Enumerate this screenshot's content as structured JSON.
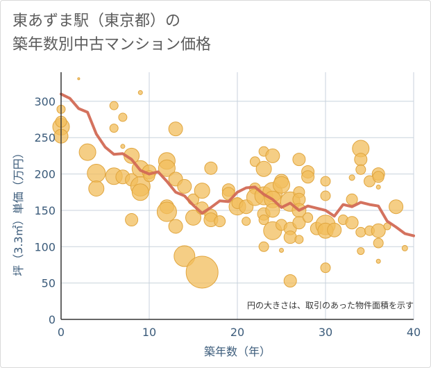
{
  "title_lines": [
    "東あずま駅（東京都）の",
    "築年数別中古マンション価格"
  ],
  "note": "円の大きさは、取引のあった物件面積を示す",
  "colors": {
    "bubble_fill": "#f1bd5c",
    "bubble_stroke": "#e0a53e",
    "line": "#d26a55",
    "grid": "#c8d2dc",
    "axis": "#333333",
    "text": "#3b5b7a"
  },
  "chart_data": {
    "type": "scatter",
    "xlabel": "築年数（年）",
    "ylabel": "坪（3.3㎡）単価（万円）",
    "xlim": [
      0,
      40
    ],
    "ylim": [
      0,
      340
    ],
    "xticks": [
      0,
      10,
      20,
      30,
      40
    ],
    "yticks": [
      0,
      50,
      100,
      150,
      200,
      250,
      300
    ],
    "grid": true,
    "bubbles": [
      {
        "x": 0,
        "y": 265,
        "r": 12
      },
      {
        "x": 0,
        "y": 252,
        "r": 10
      },
      {
        "x": 0,
        "y": 272,
        "r": 8
      },
      {
        "x": 0,
        "y": 289,
        "r": 6
      },
      {
        "x": 2,
        "y": 331,
        "r": 1.5
      },
      {
        "x": 3,
        "y": 230,
        "r": 12
      },
      {
        "x": 4,
        "y": 201,
        "r": 13
      },
      {
        "x": 4,
        "y": 180,
        "r": 11
      },
      {
        "x": 6,
        "y": 294,
        "r": 6
      },
      {
        "x": 6,
        "y": 263,
        "r": 6
      },
      {
        "x": 6,
        "y": 197,
        "r": 12
      },
      {
        "x": 7,
        "y": 278,
        "r": 6
      },
      {
        "x": 7,
        "y": 238,
        "r": 3
      },
      {
        "x": 7,
        "y": 196,
        "r": 10
      },
      {
        "x": 8,
        "y": 225,
        "r": 11
      },
      {
        "x": 8,
        "y": 137,
        "r": 9
      },
      {
        "x": 8,
        "y": 192,
        "r": 9
      },
      {
        "x": 9,
        "y": 312,
        "r": 3
      },
      {
        "x": 9,
        "y": 207,
        "r": 12
      },
      {
        "x": 9,
        "y": 183,
        "r": 14
      },
      {
        "x": 9,
        "y": 175,
        "r": 12
      },
      {
        "x": 10,
        "y": 203,
        "r": 10
      },
      {
        "x": 10,
        "y": 197,
        "r": 8
      },
      {
        "x": 12,
        "y": 218,
        "r": 12
      },
      {
        "x": 12,
        "y": 208,
        "r": 12
      },
      {
        "x": 12,
        "y": 155,
        "r": 10
      },
      {
        "x": 12,
        "y": 148,
        "r": 14
      },
      {
        "x": 13,
        "y": 262,
        "r": 10
      },
      {
        "x": 13,
        "y": 193,
        "r": 10
      },
      {
        "x": 13,
        "y": 128,
        "r": 10
      },
      {
        "x": 14,
        "y": 183,
        "r": 10
      },
      {
        "x": 14,
        "y": 87,
        "r": 15
      },
      {
        "x": 15,
        "y": 140,
        "r": 11
      },
      {
        "x": 15,
        "y": 165,
        "r": 8
      },
      {
        "x": 16,
        "y": 177,
        "r": 11
      },
      {
        "x": 16,
        "y": 65,
        "r": 23
      },
      {
        "x": 16,
        "y": 153,
        "r": 9
      },
      {
        "x": 17,
        "y": 208,
        "r": 9
      },
      {
        "x": 17,
        "y": 143,
        "r": 9
      },
      {
        "x": 17,
        "y": 137,
        "r": 10
      },
      {
        "x": 18,
        "y": 135,
        "r": 8
      },
      {
        "x": 19,
        "y": 178,
        "r": 9
      },
      {
        "x": 19,
        "y": 173,
        "r": 9
      },
      {
        "x": 20,
        "y": 155,
        "r": 12
      },
      {
        "x": 20,
        "y": 160,
        "r": 8
      },
      {
        "x": 21,
        "y": 155,
        "r": 10
      },
      {
        "x": 21,
        "y": 135,
        "r": 6
      },
      {
        "x": 22,
        "y": 217,
        "r": 7
      },
      {
        "x": 22,
        "y": 180,
        "r": 8
      },
      {
        "x": 22,
        "y": 168,
        "r": 12
      },
      {
        "x": 23,
        "y": 231,
        "r": 7
      },
      {
        "x": 23,
        "y": 207,
        "r": 11
      },
      {
        "x": 23,
        "y": 170,
        "r": 13
      },
      {
        "x": 23,
        "y": 145,
        "r": 9
      },
      {
        "x": 23,
        "y": 137,
        "r": 7
      },
      {
        "x": 23,
        "y": 100,
        "r": 7
      },
      {
        "x": 24,
        "y": 225,
        "r": 10
      },
      {
        "x": 24,
        "y": 175,
        "r": 14
      },
      {
        "x": 24,
        "y": 165,
        "r": 12
      },
      {
        "x": 24,
        "y": 150,
        "r": 10
      },
      {
        "x": 24,
        "y": 122,
        "r": 13
      },
      {
        "x": 25,
        "y": 190,
        "r": 10
      },
      {
        "x": 25,
        "y": 185,
        "r": 12
      },
      {
        "x": 25,
        "y": 130,
        "r": 8
      },
      {
        "x": 25,
        "y": 95,
        "r": 3
      },
      {
        "x": 26,
        "y": 162,
        "r": 14
      },
      {
        "x": 26,
        "y": 125,
        "r": 9
      },
      {
        "x": 26,
        "y": 113,
        "r": 9
      },
      {
        "x": 26,
        "y": 53,
        "r": 9
      },
      {
        "x": 27,
        "y": 220,
        "r": 9
      },
      {
        "x": 27,
        "y": 175,
        "r": 8
      },
      {
        "x": 27,
        "y": 165,
        "r": 9
      },
      {
        "x": 27,
        "y": 150,
        "r": 10
      },
      {
        "x": 27,
        "y": 133,
        "r": 9
      },
      {
        "x": 27,
        "y": 110,
        "r": 6
      },
      {
        "x": 28,
        "y": 203,
        "r": 9
      },
      {
        "x": 28,
        "y": 196,
        "r": 9
      },
      {
        "x": 28,
        "y": 140,
        "r": 7
      },
      {
        "x": 29,
        "y": 125,
        "r": 9
      },
      {
        "x": 30,
        "y": 190,
        "r": 7
      },
      {
        "x": 30,
        "y": 170,
        "r": 7
      },
      {
        "x": 30,
        "y": 130,
        "r": 14
      },
      {
        "x": 30,
        "y": 122,
        "r": 11
      },
      {
        "x": 30,
        "y": 71,
        "r": 7
      },
      {
        "x": 31,
        "y": 123,
        "r": 10
      },
      {
        "x": 32,
        "y": 137,
        "r": 7
      },
      {
        "x": 33,
        "y": 195,
        "r": 4
      },
      {
        "x": 33,
        "y": 165,
        "r": 8
      },
      {
        "x": 33,
        "y": 133,
        "r": 9
      },
      {
        "x": 34,
        "y": 235,
        "r": 12
      },
      {
        "x": 34,
        "y": 220,
        "r": 9
      },
      {
        "x": 34,
        "y": 206,
        "r": 7
      },
      {
        "x": 34,
        "y": 120,
        "r": 7
      },
      {
        "x": 34,
        "y": 94,
        "r": 5
      },
      {
        "x": 35,
        "y": 190,
        "r": 8
      },
      {
        "x": 35,
        "y": 122,
        "r": 7
      },
      {
        "x": 36,
        "y": 200,
        "r": 9
      },
      {
        "x": 36,
        "y": 196,
        "r": 8
      },
      {
        "x": 36,
        "y": 182,
        "r": 3
      },
      {
        "x": 36,
        "y": 122,
        "r": 10
      },
      {
        "x": 36,
        "y": 105,
        "r": 7
      },
      {
        "x": 36,
        "y": 80,
        "r": 3
      },
      {
        "x": 37,
        "y": 128,
        "r": 5
      },
      {
        "x": 38,
        "y": 155,
        "r": 10
      },
      {
        "x": 39,
        "y": 98,
        "r": 4
      }
    ],
    "trend": {
      "x": [
        0,
        1,
        2,
        3,
        4,
        5,
        6,
        7,
        8,
        9,
        10,
        11,
        12,
        13,
        14,
        15,
        16,
        17,
        18,
        19,
        20,
        21,
        22,
        23,
        24,
        25,
        26,
        27,
        28,
        29,
        30,
        31,
        32,
        33,
        34,
        35,
        36,
        37,
        38,
        39,
        40
      ],
      "y": [
        310,
        304,
        290,
        285,
        255,
        237,
        227,
        228,
        220,
        205,
        200,
        203,
        190,
        175,
        170,
        157,
        146,
        154,
        163,
        162,
        175,
        181,
        182,
        172,
        165,
        154,
        160,
        150,
        156,
        153,
        150,
        142,
        158,
        155,
        161,
        158,
        156,
        135,
        127,
        118,
        115
      ]
    }
  }
}
